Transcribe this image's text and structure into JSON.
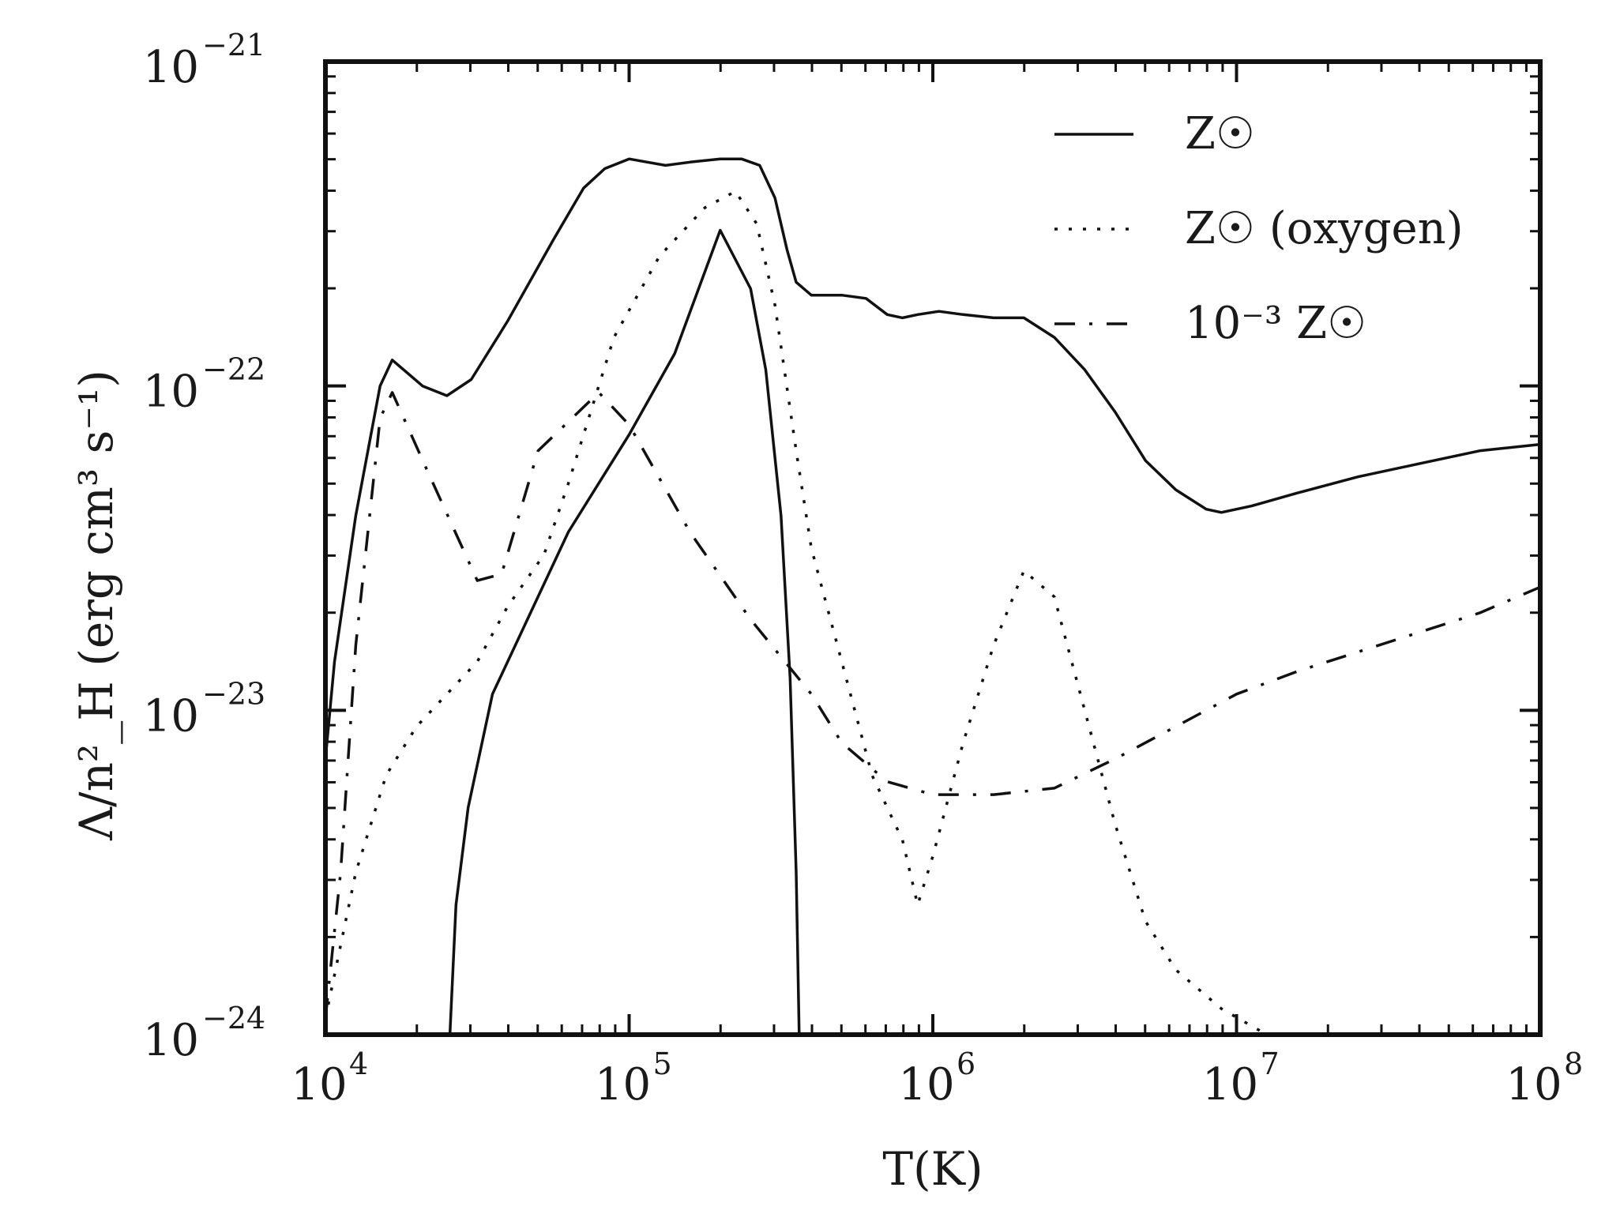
{
  "chart_data": {
    "type": "line",
    "title": "",
    "xlabel": "T(K)",
    "ylabel": "Λ/n²_H (erg cm³ s⁻¹)",
    "xscale": "log",
    "yscale": "log",
    "xlim": [
      10000,
      100000000
    ],
    "ylim": [
      1e-24,
      1e-21
    ],
    "grid": false,
    "legend_position": "top-right",
    "x_ticks": [
      {
        "value": 10000,
        "base": "10",
        "exp": "4"
      },
      {
        "value": 100000,
        "base": "10",
        "exp": "5"
      },
      {
        "value": 1000000,
        "base": "10",
        "exp": "6"
      },
      {
        "value": 10000000,
        "base": "10",
        "exp": "7"
      },
      {
        "value": 100000000,
        "base": "10",
        "exp": "8"
      }
    ],
    "y_ticks": [
      {
        "value": 1e-21,
        "base": "10",
        "exp": "−21"
      },
      {
        "value": 1e-22,
        "base": "10",
        "exp": "−22"
      },
      {
        "value": 1e-23,
        "base": "10",
        "exp": "−23"
      },
      {
        "value": 1e-24,
        "base": "10",
        "exp": "−24"
      }
    ],
    "series": [
      {
        "name": "Z☉",
        "style": "solid",
        "log_points": [
          [
            4.0,
            -23.15
          ],
          [
            4.03,
            -22.85
          ],
          [
            4.1,
            -22.4
          ],
          [
            4.18,
            -22.0
          ],
          [
            4.22,
            -21.92
          ],
          [
            4.32,
            -22.0
          ],
          [
            4.4,
            -22.03
          ],
          [
            4.48,
            -21.98
          ],
          [
            4.6,
            -21.8
          ],
          [
            4.75,
            -21.55
          ],
          [
            4.85,
            -21.39
          ],
          [
            4.92,
            -21.33
          ],
          [
            5.0,
            -21.3
          ],
          [
            5.06,
            -21.31
          ],
          [
            5.12,
            -21.32
          ],
          [
            5.2,
            -21.31
          ],
          [
            5.3,
            -21.3
          ],
          [
            5.37,
            -21.3
          ],
          [
            5.43,
            -21.32
          ],
          [
            5.48,
            -21.42
          ],
          [
            5.52,
            -21.58
          ],
          [
            5.55,
            -21.68
          ],
          [
            5.6,
            -21.72
          ],
          [
            5.7,
            -21.72
          ],
          [
            5.78,
            -21.73
          ],
          [
            5.85,
            -21.78
          ],
          [
            5.9,
            -21.79
          ],
          [
            5.95,
            -21.78
          ],
          [
            6.02,
            -21.77
          ],
          [
            6.1,
            -21.78
          ],
          [
            6.2,
            -21.79
          ],
          [
            6.3,
            -21.79
          ],
          [
            6.4,
            -21.85
          ],
          [
            6.5,
            -21.95
          ],
          [
            6.6,
            -22.08
          ],
          [
            6.7,
            -22.23
          ],
          [
            6.8,
            -22.32
          ],
          [
            6.9,
            -22.38
          ],
          [
            6.95,
            -22.39
          ],
          [
            7.05,
            -22.37
          ],
          [
            7.2,
            -22.33
          ],
          [
            7.4,
            -22.28
          ],
          [
            7.6,
            -22.24
          ],
          [
            7.8,
            -22.2
          ],
          [
            8.0,
            -22.18
          ]
        ]
      },
      {
        "name": "Z☉ (oxygen)",
        "style": "dotted",
        "log_points": [
          [
            4.0,
            -23.95
          ],
          [
            4.1,
            -23.5
          ],
          [
            4.2,
            -23.2
          ],
          [
            4.3,
            -23.05
          ],
          [
            4.5,
            -22.85
          ],
          [
            4.6,
            -22.68
          ],
          [
            4.72,
            -22.52
          ],
          [
            4.8,
            -22.3
          ],
          [
            4.95,
            -21.85
          ],
          [
            5.1,
            -21.6
          ],
          [
            5.25,
            -21.45
          ],
          [
            5.35,
            -21.4
          ],
          [
            5.42,
            -21.5
          ],
          [
            5.48,
            -21.75
          ],
          [
            5.55,
            -22.2
          ],
          [
            5.6,
            -22.5
          ],
          [
            5.7,
            -22.85
          ],
          [
            5.8,
            -23.2
          ],
          [
            5.9,
            -23.4
          ],
          [
            5.95,
            -23.6
          ],
          [
            6.0,
            -23.45
          ],
          [
            6.1,
            -23.1
          ],
          [
            6.2,
            -22.8
          ],
          [
            6.3,
            -22.57
          ],
          [
            6.4,
            -22.65
          ],
          [
            6.5,
            -23.0
          ],
          [
            6.6,
            -23.35
          ],
          [
            6.7,
            -23.65
          ],
          [
            6.8,
            -23.8
          ],
          [
            6.95,
            -23.92
          ],
          [
            7.1,
            -24.0
          ]
        ]
      },
      {
        "name": "10⁻³ Z☉",
        "style": "dashdot",
        "log_points": [
          [
            4.0,
            -23.95
          ],
          [
            4.05,
            -23.5
          ],
          [
            4.1,
            -22.8
          ],
          [
            4.18,
            -22.1
          ],
          [
            4.22,
            -22.02
          ],
          [
            4.33,
            -22.25
          ],
          [
            4.5,
            -22.6
          ],
          [
            4.58,
            -22.58
          ],
          [
            4.7,
            -22.2
          ],
          [
            4.9,
            -22.02
          ],
          [
            5.0,
            -22.12
          ],
          [
            5.2,
            -22.45
          ],
          [
            5.4,
            -22.72
          ],
          [
            5.6,
            -22.95
          ],
          [
            5.7,
            -23.1
          ],
          [
            5.85,
            -23.22
          ],
          [
            6.0,
            -23.26
          ],
          [
            6.2,
            -23.26
          ],
          [
            6.4,
            -23.24
          ],
          [
            6.6,
            -23.15
          ],
          [
            6.8,
            -23.05
          ],
          [
            7.0,
            -22.95
          ],
          [
            7.2,
            -22.88
          ],
          [
            7.4,
            -22.82
          ],
          [
            7.6,
            -22.76
          ],
          [
            7.8,
            -22.7
          ],
          [
            8.0,
            -22.62
          ]
        ]
      },
      {
        "name": "",
        "style": "solid",
        "log_points": [
          [
            4.41,
            -24.0
          ],
          [
            4.43,
            -23.6
          ],
          [
            4.47,
            -23.3
          ],
          [
            4.55,
            -22.95
          ],
          [
            4.65,
            -22.75
          ],
          [
            4.8,
            -22.45
          ],
          [
            5.0,
            -22.15
          ],
          [
            5.15,
            -21.9
          ],
          [
            5.3,
            -21.52
          ],
          [
            5.4,
            -21.7
          ],
          [
            5.45,
            -21.95
          ],
          [
            5.5,
            -22.4
          ],
          [
            5.53,
            -22.9
          ],
          [
            5.55,
            -23.5
          ],
          [
            5.56,
            -24.0
          ]
        ]
      }
    ]
  }
}
